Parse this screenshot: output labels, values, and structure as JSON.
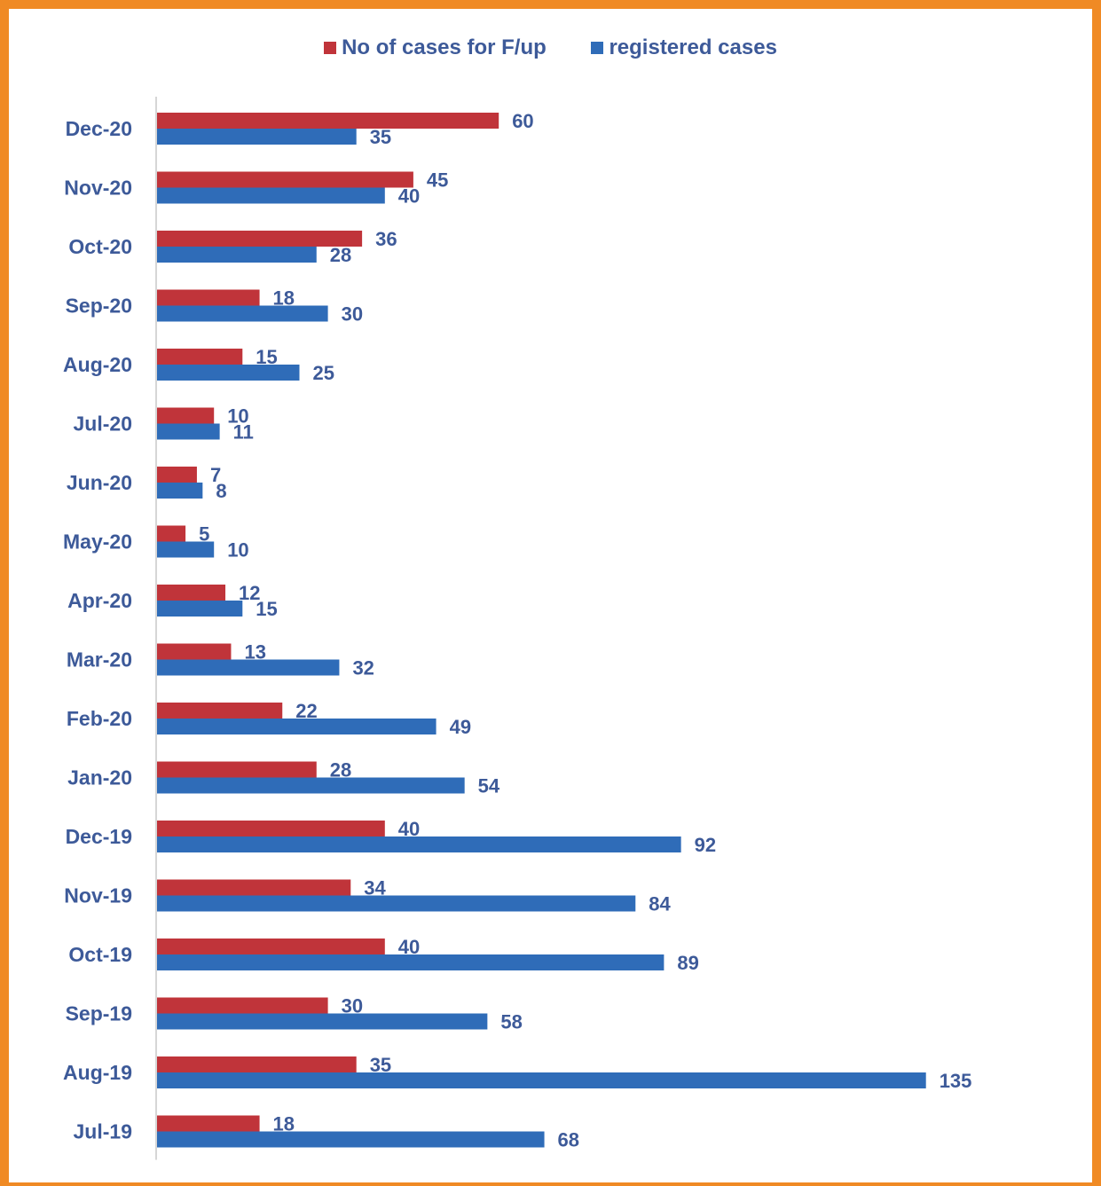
{
  "chart_data": {
    "type": "bar",
    "orientation": "horizontal",
    "categories": [
      "Dec-20",
      "Nov-20",
      "Oct-20",
      "Sep-20",
      "Aug-20",
      "Jul-20",
      "Jun-20",
      "May-20",
      "Apr-20",
      "Mar-20",
      "Feb-20",
      "Jan-20",
      "Dec-19",
      "Nov-19",
      "Oct-19",
      "Sep-19",
      "Aug-19",
      "Jul-19"
    ],
    "series": [
      {
        "name": "No of cases for F/up",
        "color": "#c0343a",
        "values": [
          60,
          45,
          36,
          18,
          15,
          10,
          7,
          5,
          12,
          13,
          22,
          28,
          40,
          34,
          40,
          30,
          35,
          18
        ]
      },
      {
        "name": "registered cases",
        "color": "#2f6cb8",
        "values": [
          35,
          40,
          28,
          30,
          25,
          11,
          8,
          10,
          15,
          32,
          49,
          54,
          92,
          84,
          89,
          58,
          135,
          68
        ]
      }
    ],
    "xlim": [
      0,
      135
    ],
    "grid": false,
    "legend_position": "top",
    "data_labels": true,
    "title": "",
    "xlabel": "",
    "ylabel": ""
  },
  "frame_color": "#f08a24"
}
